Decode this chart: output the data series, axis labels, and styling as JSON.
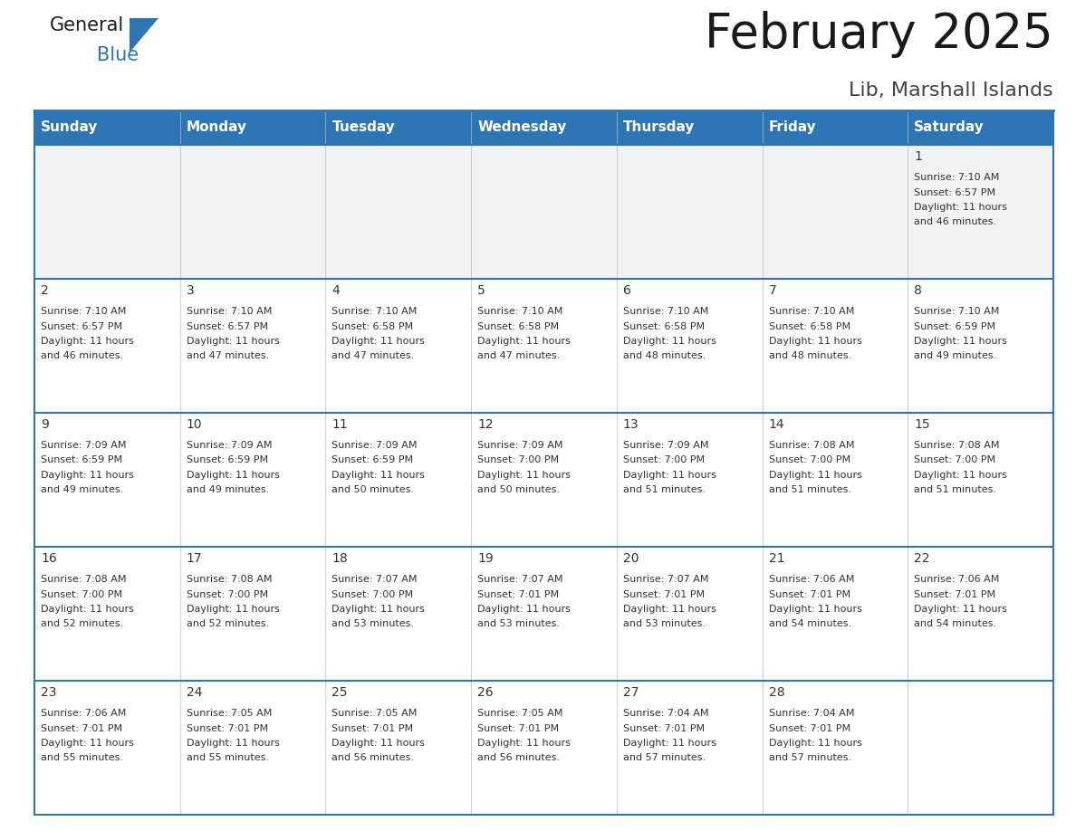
{
  "title": "February 2025",
  "subtitle": "Lib, Marshall Islands",
  "header_color": "#2E75B6",
  "header_text_color": "#FFFFFF",
  "cell_bg_white": "#FFFFFF",
  "cell_bg_gray": "#F2F2F2",
  "border_color": "#2E75B6",
  "text_color": "#333333",
  "days_of_week": [
    "Sunday",
    "Monday",
    "Tuesday",
    "Wednesday",
    "Thursday",
    "Friday",
    "Saturday"
  ],
  "calendar_data": [
    [
      null,
      null,
      null,
      null,
      null,
      null,
      {
        "day": "1",
        "sunrise": "7:10 AM",
        "sunset": "6:57 PM",
        "daylight": "11 hours",
        "daylight2": "and 46 minutes."
      }
    ],
    [
      {
        "day": "2",
        "sunrise": "7:10 AM",
        "sunset": "6:57 PM",
        "daylight": "11 hours",
        "daylight2": "and 46 minutes."
      },
      {
        "day": "3",
        "sunrise": "7:10 AM",
        "sunset": "6:57 PM",
        "daylight": "11 hours",
        "daylight2": "and 47 minutes."
      },
      {
        "day": "4",
        "sunrise": "7:10 AM",
        "sunset": "6:58 PM",
        "daylight": "11 hours",
        "daylight2": "and 47 minutes."
      },
      {
        "day": "5",
        "sunrise": "7:10 AM",
        "sunset": "6:58 PM",
        "daylight": "11 hours",
        "daylight2": "and 47 minutes."
      },
      {
        "day": "6",
        "sunrise": "7:10 AM",
        "sunset": "6:58 PM",
        "daylight": "11 hours",
        "daylight2": "and 48 minutes."
      },
      {
        "day": "7",
        "sunrise": "7:10 AM",
        "sunset": "6:58 PM",
        "daylight": "11 hours",
        "daylight2": "and 48 minutes."
      },
      {
        "day": "8",
        "sunrise": "7:10 AM",
        "sunset": "6:59 PM",
        "daylight": "11 hours",
        "daylight2": "and 49 minutes."
      }
    ],
    [
      {
        "day": "9",
        "sunrise": "7:09 AM",
        "sunset": "6:59 PM",
        "daylight": "11 hours",
        "daylight2": "and 49 minutes."
      },
      {
        "day": "10",
        "sunrise": "7:09 AM",
        "sunset": "6:59 PM",
        "daylight": "11 hours",
        "daylight2": "and 49 minutes."
      },
      {
        "day": "11",
        "sunrise": "7:09 AM",
        "sunset": "6:59 PM",
        "daylight": "11 hours",
        "daylight2": "and 50 minutes."
      },
      {
        "day": "12",
        "sunrise": "7:09 AM",
        "sunset": "7:00 PM",
        "daylight": "11 hours",
        "daylight2": "and 50 minutes."
      },
      {
        "day": "13",
        "sunrise": "7:09 AM",
        "sunset": "7:00 PM",
        "daylight": "11 hours",
        "daylight2": "and 51 minutes."
      },
      {
        "day": "14",
        "sunrise": "7:08 AM",
        "sunset": "7:00 PM",
        "daylight": "11 hours",
        "daylight2": "and 51 minutes."
      },
      {
        "day": "15",
        "sunrise": "7:08 AM",
        "sunset": "7:00 PM",
        "daylight": "11 hours",
        "daylight2": "and 51 minutes."
      }
    ],
    [
      {
        "day": "16",
        "sunrise": "7:08 AM",
        "sunset": "7:00 PM",
        "daylight": "11 hours",
        "daylight2": "and 52 minutes."
      },
      {
        "day": "17",
        "sunrise": "7:08 AM",
        "sunset": "7:00 PM",
        "daylight": "11 hours",
        "daylight2": "and 52 minutes."
      },
      {
        "day": "18",
        "sunrise": "7:07 AM",
        "sunset": "7:00 PM",
        "daylight": "11 hours",
        "daylight2": "and 53 minutes."
      },
      {
        "day": "19",
        "sunrise": "7:07 AM",
        "sunset": "7:01 PM",
        "daylight": "11 hours",
        "daylight2": "and 53 minutes."
      },
      {
        "day": "20",
        "sunrise": "7:07 AM",
        "sunset": "7:01 PM",
        "daylight": "11 hours",
        "daylight2": "and 53 minutes."
      },
      {
        "day": "21",
        "sunrise": "7:06 AM",
        "sunset": "7:01 PM",
        "daylight": "11 hours",
        "daylight2": "and 54 minutes."
      },
      {
        "day": "22",
        "sunrise": "7:06 AM",
        "sunset": "7:01 PM",
        "daylight": "11 hours",
        "daylight2": "and 54 minutes."
      }
    ],
    [
      {
        "day": "23",
        "sunrise": "7:06 AM",
        "sunset": "7:01 PM",
        "daylight": "11 hours",
        "daylight2": "and 55 minutes."
      },
      {
        "day": "24",
        "sunrise": "7:05 AM",
        "sunset": "7:01 PM",
        "daylight": "11 hours",
        "daylight2": "and 55 minutes."
      },
      {
        "day": "25",
        "sunrise": "7:05 AM",
        "sunset": "7:01 PM",
        "daylight": "11 hours",
        "daylight2": "and 56 minutes."
      },
      {
        "day": "26",
        "sunrise": "7:05 AM",
        "sunset": "7:01 PM",
        "daylight": "11 hours",
        "daylight2": "and 56 minutes."
      },
      {
        "day": "27",
        "sunrise": "7:04 AM",
        "sunset": "7:01 PM",
        "daylight": "11 hours",
        "daylight2": "and 57 minutes."
      },
      {
        "day": "28",
        "sunrise": "7:04 AM",
        "sunset": "7:01 PM",
        "daylight": "11 hours",
        "daylight2": "and 57 minutes."
      },
      null
    ]
  ],
  "title_fontsize": 38,
  "subtitle_fontsize": 16,
  "day_num_fontsize": 10,
  "cell_text_fontsize": 8,
  "header_fontsize": 11
}
